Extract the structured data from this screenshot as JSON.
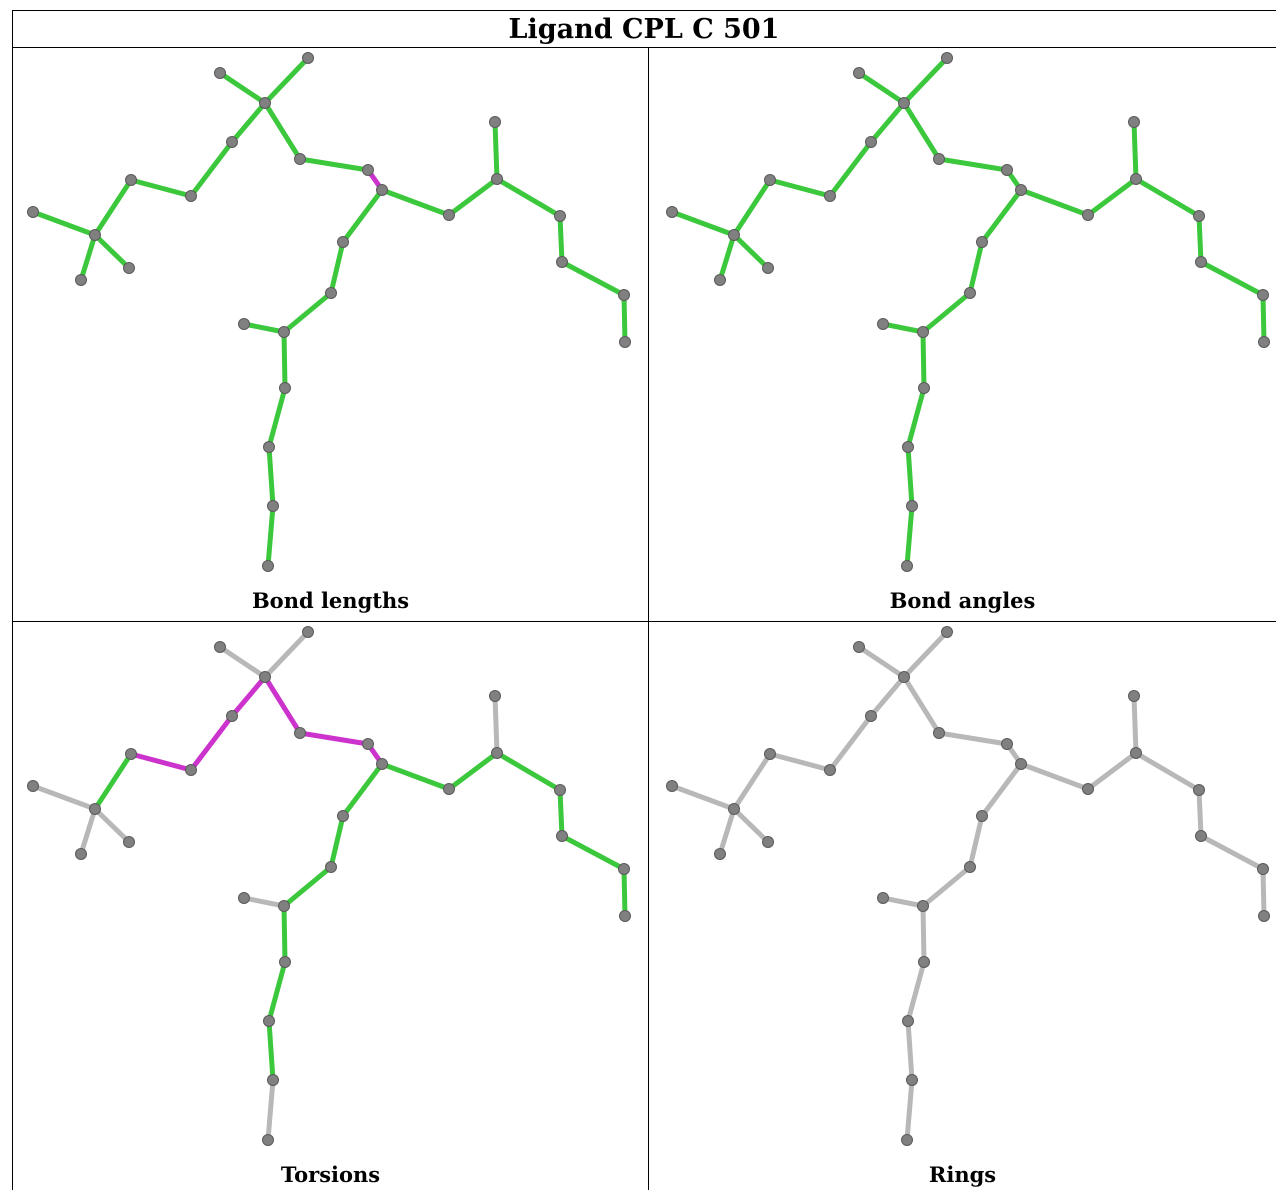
{
  "title": "Ligand CPL C 501",
  "panels": [
    {
      "caption": "Bond lengths"
    },
    {
      "caption": "Bond angles"
    },
    {
      "caption": "Torsions"
    },
    {
      "caption": "Rings"
    }
  ],
  "colors": {
    "ok_bond": "#3cc83c",
    "outlier_bond": "#cc33cc",
    "neutral_bond": "#b8b8b8",
    "atom": "#808080"
  }
}
